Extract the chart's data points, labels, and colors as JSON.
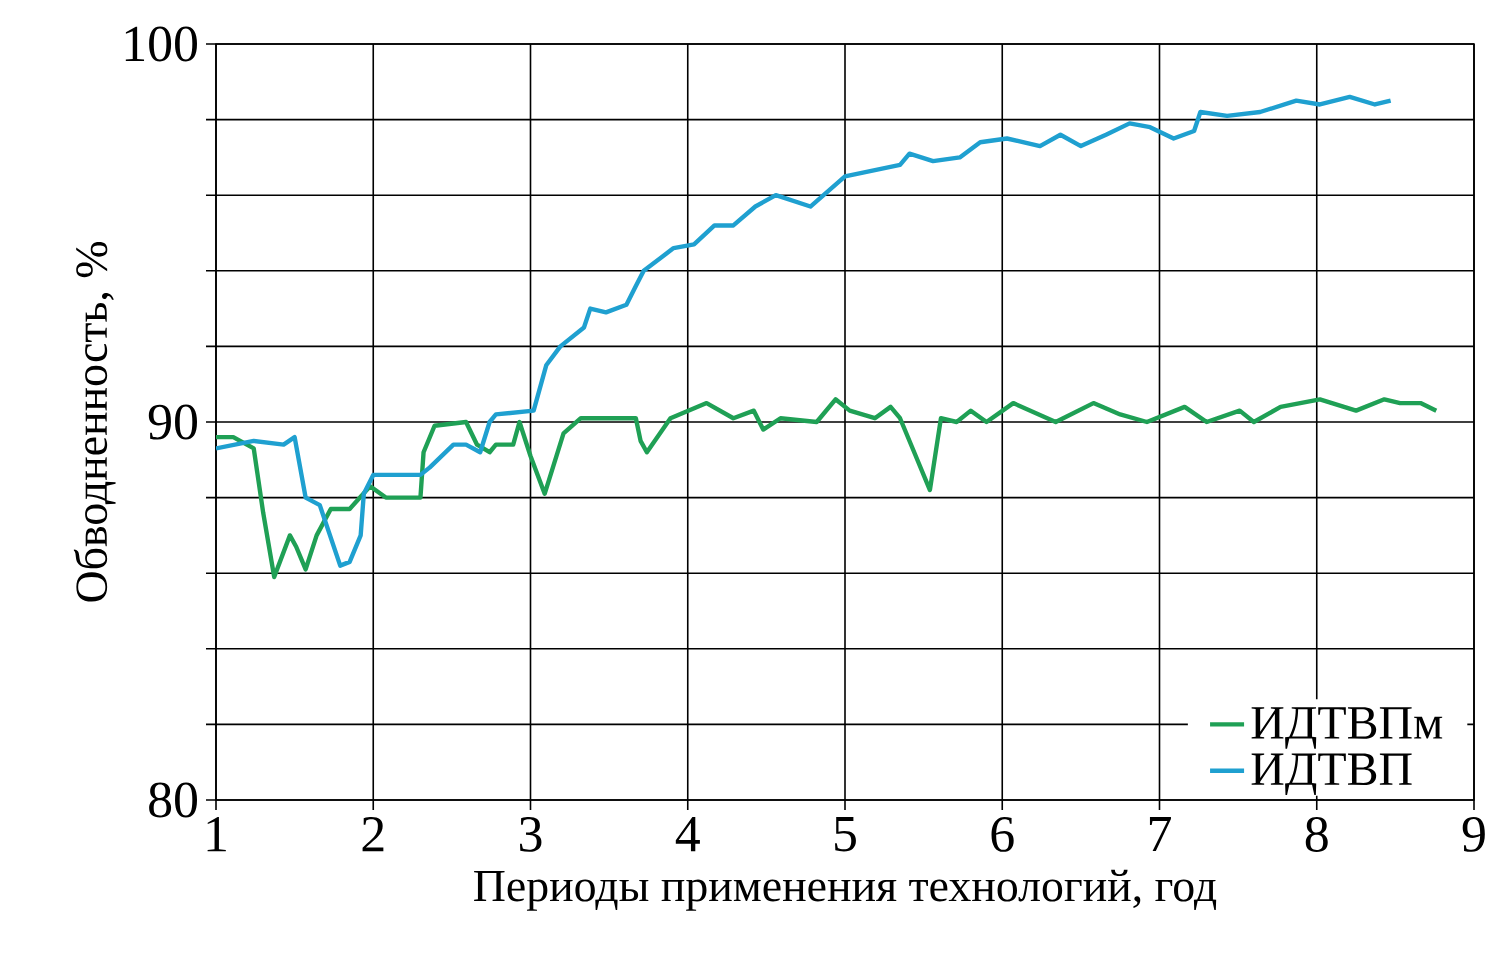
{
  "chart_data": {
    "type": "line",
    "xlabel": "Периоды применения технологий, год",
    "ylabel": "Обводненность, %",
    "xlim": [
      1,
      9
    ],
    "ylim": [
      80,
      100
    ],
    "xticks": [
      1,
      2,
      3,
      4,
      5,
      6,
      7,
      8,
      9
    ],
    "yticks": [
      80,
      {
        "value": 82,
        "label": null
      },
      {
        "value": 84,
        "label": null
      },
      {
        "value": 86,
        "label": null
      },
      {
        "value": 88,
        "label": null
      },
      90,
      {
        "value": 92,
        "label": null
      },
      {
        "value": 94,
        "label": null
      },
      {
        "value": 96,
        "label": null
      },
      {
        "value": 98,
        "label": null
      },
      100
    ],
    "grid": true,
    "legend": "bottom right",
    "series": [
      {
        "name": "ИДТВПм",
        "color": "#1fa055",
        "x": [
          1.0,
          1.11,
          1.24,
          1.3,
          1.37,
          1.47,
          1.51,
          1.57,
          1.64,
          1.73,
          1.85,
          1.98,
          2.08,
          2.3,
          2.32,
          2.39,
          2.59,
          2.66,
          2.74,
          2.78,
          2.89,
          2.93,
          3.0,
          3.09,
          3.21,
          3.32,
          3.67,
          3.7,
          3.74,
          3.89,
          4.12,
          4.29,
          4.42,
          4.48,
          4.59,
          4.82,
          4.94,
          5.03,
          5.19,
          5.29,
          5.35,
          5.45,
          5.54,
          5.61,
          5.71,
          5.8,
          5.9,
          6.07,
          6.34,
          6.58,
          6.75,
          6.92,
          7.16,
          7.3,
          7.51,
          7.6,
          7.77,
          8.02,
          8.25,
          8.43,
          8.53,
          8.66,
          8.76
        ],
        "values": [
          89.6,
          89.6,
          89.3,
          87.6,
          85.9,
          87.0,
          86.7,
          86.1,
          87.0,
          87.7,
          87.7,
          88.3,
          88.0,
          88.0,
          89.2,
          89.9,
          90.0,
          89.4,
          89.2,
          89.4,
          89.4,
          90.0,
          89.1,
          88.1,
          89.7,
          90.1,
          90.1,
          89.5,
          89.2,
          90.1,
          90.5,
          90.1,
          90.3,
          89.8,
          90.1,
          90.0,
          90.6,
          90.3,
          90.1,
          90.4,
          90.1,
          89.1,
          88.2,
          90.1,
          90.0,
          90.3,
          90.0,
          90.5,
          90.0,
          90.5,
          90.2,
          90.0,
          90.4,
          90.0,
          90.3,
          90.0,
          90.4,
          90.6,
          90.3,
          90.6,
          90.5,
          90.5,
          90.3
        ]
      },
      {
        "name": "ИДТВП",
        "color": "#1fa0d0",
        "x": [
          1.0,
          1.24,
          1.43,
          1.5,
          1.57,
          1.66,
          1.79,
          1.85,
          1.92,
          1.94,
          2.0,
          2.3,
          2.36,
          2.51,
          2.59,
          2.68,
          2.74,
          2.78,
          3.02,
          3.1,
          3.19,
          3.34,
          3.38,
          3.48,
          3.61,
          3.67,
          3.72,
          3.91,
          4.04,
          4.17,
          4.29,
          4.43,
          4.56,
          4.78,
          5.0,
          5.35,
          5.41,
          5.56,
          5.73,
          5.86,
          6.03,
          6.24,
          6.37,
          6.5,
          6.66,
          6.81,
          6.94,
          7.09,
          7.22,
          7.26,
          7.43,
          7.64,
          7.87,
          8.02,
          8.21,
          8.37,
          8.47
        ],
        "values": [
          89.3,
          89.5,
          89.4,
          89.6,
          88.0,
          87.8,
          86.2,
          86.3,
          87.0,
          88.1,
          88.6,
          88.6,
          88.8,
          89.4,
          89.4,
          89.2,
          90.0,
          90.2,
          90.3,
          91.5,
          92.0,
          92.5,
          93.0,
          92.9,
          93.1,
          93.6,
          94.0,
          94.6,
          94.7,
          95.2,
          95.2,
          95.7,
          96.0,
          95.7,
          96.5,
          96.8,
          97.1,
          96.9,
          97.0,
          97.4,
          97.5,
          97.3,
          97.6,
          97.3,
          97.6,
          97.9,
          97.8,
          97.5,
          97.7,
          98.2,
          98.1,
          98.2,
          98.5,
          98.4,
          98.6,
          98.4,
          98.5
        ]
      }
    ]
  }
}
